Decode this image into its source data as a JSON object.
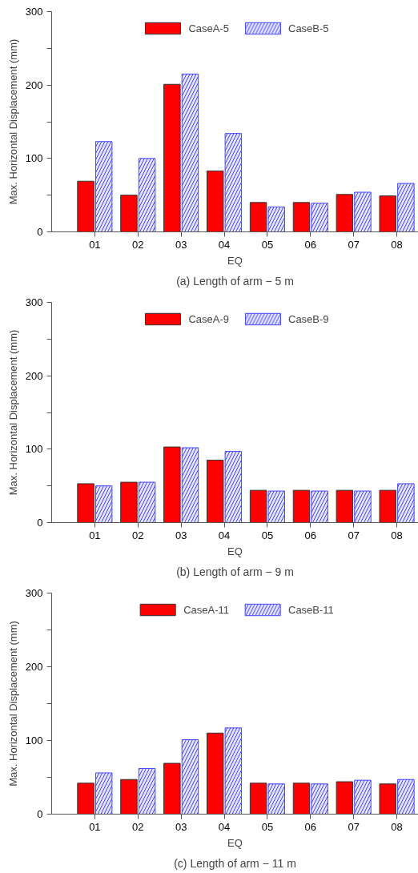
{
  "chart_data": [
    {
      "type": "bar",
      "categories": [
        "01",
        "02",
        "03",
        "04",
        "05",
        "06",
        "07",
        "08"
      ],
      "xlabel": "EQ",
      "ylabel": "Max. Horizontal Displacement (mm)",
      "ylim": [
        0,
        300
      ],
      "yticks": [
        0,
        {
          "value": 50,
          "label": null
        },
        100,
        {
          "value": 150,
          "label": null
        },
        200,
        {
          "value": 250,
          "label": null
        },
        300
      ],
      "grid": false,
      "legend": "top",
      "annotations": [
        "(a) Length of arm − 5 m"
      ],
      "series": [
        {
          "name": "CaseA-5",
          "color": "#ff0000",
          "values": [
            69,
            50,
            201,
            83,
            40,
            40,
            51,
            49
          ]
        },
        {
          "name": "CaseB-5",
          "color": "#4444ff",
          "values": [
            123,
            100,
            215,
            134,
            34,
            39,
            54,
            66
          ]
        }
      ]
    },
    {
      "type": "bar",
      "categories": [
        "01",
        "02",
        "03",
        "04",
        "05",
        "06",
        "07",
        "08"
      ],
      "xlabel": "EQ",
      "ylabel": "Max. Horizontal Displacement (mm)",
      "ylim": [
        0,
        300
      ],
      "yticks": [
        0,
        {
          "value": 50,
          "label": null
        },
        100,
        {
          "value": 150,
          "label": null
        },
        200,
        {
          "value": 250,
          "label": null
        },
        300
      ],
      "grid": false,
      "legend": "top",
      "annotations": [
        "(b) Length of arm − 9 m"
      ],
      "series": [
        {
          "name": "CaseA-9",
          "color": "#ff0000",
          "values": [
            53,
            55,
            103,
            85,
            44,
            44,
            44,
            44
          ]
        },
        {
          "name": "CaseB-9",
          "color": "#4444ff",
          "values": [
            50,
            55,
            102,
            97,
            43,
            43,
            43,
            53
          ]
        }
      ]
    },
    {
      "type": "bar",
      "categories": [
        "01",
        "02",
        "03",
        "04",
        "05",
        "06",
        "07",
        "08"
      ],
      "xlabel": "EQ",
      "ylabel": "Max. Horizontal Displacement (mm)",
      "ylim": [
        0,
        300
      ],
      "yticks": [
        0,
        {
          "value": 50,
          "label": null
        },
        100,
        {
          "value": 150,
          "label": null
        },
        200,
        {
          "value": 250,
          "label": null
        },
        300
      ],
      "grid": false,
      "legend": "top",
      "annotations": [
        "(c) Length of arm − 11 m"
      ],
      "series": [
        {
          "name": "CaseA-11",
          "color": "#ff0000",
          "values": [
            42,
            47,
            69,
            110,
            42,
            42,
            44,
            41
          ]
        },
        {
          "name": "CaseB-11",
          "color": "#4444ff",
          "values": [
            56,
            62,
            101,
            117,
            41,
            41,
            46,
            47
          ]
        }
      ]
    }
  ]
}
